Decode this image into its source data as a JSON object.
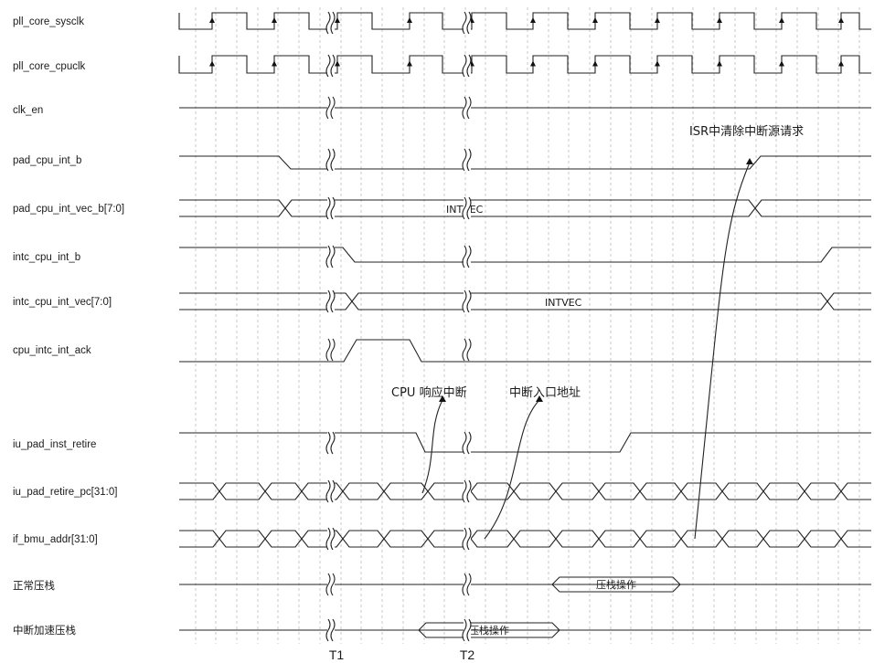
{
  "signals": [
    {
      "id": "sysclk",
      "label": "pll_core_sysclk"
    },
    {
      "id": "cpuclk",
      "label": "pll_core_cpuclk"
    },
    {
      "id": "clken",
      "label": "clk_en"
    },
    {
      "id": "padint",
      "label": "pad_cpu_int_b"
    },
    {
      "id": "padvec",
      "label": "pad_cpu_int_vec_b[7:0]"
    },
    {
      "id": "intcint",
      "label": "intc_cpu_int_b"
    },
    {
      "id": "intcvec",
      "label": "intc_cpu_int_vec[7:0]"
    },
    {
      "id": "ack",
      "label": "cpu_intc_int_ack"
    },
    {
      "id": "retire",
      "label": "iu_pad_inst_retire"
    },
    {
      "id": "retirepc",
      "label": "iu_pad_retire_pc[31:0]"
    },
    {
      "id": "bmuaddr",
      "label": "if_bmu_addr[31:0]"
    },
    {
      "id": "normpush",
      "label": "正常压栈"
    },
    {
      "id": "intpush",
      "label": "中断加速压栈"
    }
  ],
  "bus_labels": {
    "padvec": "INTVEC",
    "intcvec": "INTVEC",
    "normpush": "压栈操作",
    "intpush": "压栈操作"
  },
  "annotations": {
    "isr_clear": "ISR中清除中断源请求",
    "cpu_ack": "CPU 响应中断",
    "entry_addr": "中断入口地址"
  },
  "time_markers": [
    "T1",
    "T2"
  ],
  "colors": {
    "line": "#222222",
    "grid": "#bdbdbd",
    "background": "#ffffff"
  }
}
